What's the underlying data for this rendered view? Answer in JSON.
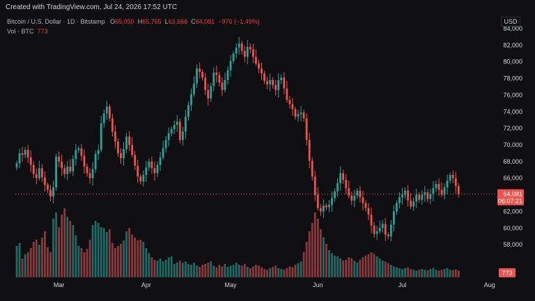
{
  "header": {
    "created_text": "Created with TradingView.com, Jul 24, 2026 17:52 UTC"
  },
  "legend": {
    "symbol": "Bitcoin / U.S. Dollar · 1D · Bitstamp",
    "o_label": "O",
    "o_value": "65,050",
    "h_label": "H",
    "h_value": "65,765",
    "l_label": "L",
    "l_value": "63,666",
    "c_label": "C",
    "c_value": "64,081",
    "change": "−970 (−1.49%)",
    "vol_label": "Vol · BTC",
    "vol_value": "773"
  },
  "price_axis": {
    "currency": "USD",
    "last_price": "64,081",
    "countdown": "06:07:21",
    "volume_badge": "773"
  },
  "colors": {
    "up": "#26a69a",
    "down": "#ef5350",
    "up_vol": "#1f6b66",
    "down_vol": "#8a3a3c",
    "bg": "#0f0f12"
  },
  "chart_data": {
    "type": "candlestick",
    "ylim": [
      56000,
      84000
    ],
    "yticks": [
      58000,
      60000,
      62000,
      64000,
      66000,
      68000,
      70000,
      72000,
      74000,
      76000,
      78000,
      80000,
      82000,
      84000
    ],
    "ytick_labels": [
      "58,000",
      "60,000",
      "62,000",
      "",
      "66,000",
      "68,000",
      "70,000",
      "72,000",
      "74,000",
      "76,000",
      "78,000",
      "80,000",
      "82,000",
      "84,000"
    ],
    "xticks": [
      {
        "label": "Mar",
        "index": 15
      },
      {
        "label": "Apr",
        "index": 46
      },
      {
        "label": "May",
        "index": 76
      },
      {
        "label": "Jun",
        "index": 107
      },
      {
        "label": "Jul",
        "index": 137
      },
      {
        "label": "Aug",
        "index": 168
      }
    ],
    "last_price": 64081,
    "grid": false,
    "closes": [
      67800,
      69000,
      68800,
      69400,
      68500,
      67600,
      66500,
      66000,
      67200,
      66100,
      65200,
      64600,
      63800,
      64900,
      68600,
      68000,
      67200,
      66500,
      67400,
      66800,
      68300,
      69400,
      69600,
      68700,
      67400,
      66600,
      66000,
      67100,
      68900,
      69400,
      72600,
      73800,
      74600,
      73200,
      71600,
      70400,
      69000,
      68400,
      69500,
      71000,
      70000,
      68800,
      67500,
      66200,
      65600,
      66400,
      67300,
      68000,
      67200,
      66600,
      67600,
      68500,
      69600,
      70600,
      71400,
      71900,
      72400,
      72800,
      70600,
      71600,
      73400,
      74800,
      76100,
      77400,
      79200,
      78800,
      78100,
      76600,
      75600,
      77100,
      78700,
      78400,
      77500,
      76600,
      77800,
      79000,
      80100,
      81000,
      81700,
      82200,
      81300,
      80600,
      81800,
      81500,
      80600,
      79800,
      79200,
      78600,
      77700,
      77300,
      77800,
      77200,
      76600,
      77800,
      78100,
      76800,
      75400,
      74900,
      74300,
      73400,
      73700,
      73900,
      73200,
      70600,
      68100,
      66200,
      64000,
      62400,
      62000,
      62700,
      62500,
      62800,
      63600,
      64400,
      65400,
      66600,
      65800,
      64800,
      63900,
      63300,
      63900,
      64500,
      63700,
      63000,
      62400,
      61600,
      60300,
      59300,
      59600,
      60000,
      60500,
      59200,
      59000,
      60400,
      62000,
      63000,
      63700,
      64000,
      64500,
      63300,
      62600,
      63200,
      64000,
      63400,
      64000,
      64300,
      63500,
      64100,
      64800,
      65300,
      64600,
      64000,
      64900,
      65700,
      66400,
      66000,
      65050,
      64081
    ],
    "volumes": [
      75,
      82,
      45,
      55,
      60,
      70,
      85,
      90,
      78,
      95,
      110,
      72,
      60,
      140,
      155,
      120,
      150,
      165,
      145,
      135,
      125,
      100,
      75,
      70,
      60,
      68,
      90,
      125,
      135,
      130,
      120,
      118,
      108,
      115,
      82,
      70,
      75,
      80,
      88,
      110,
      118,
      102,
      95,
      88,
      90,
      85,
      70,
      58,
      48,
      42,
      40,
      45,
      38,
      42,
      48,
      50,
      32,
      36,
      40,
      35,
      38,
      32,
      30,
      35,
      28,
      25,
      30,
      32,
      35,
      38,
      28,
      24,
      30,
      26,
      32,
      25,
      28,
      30,
      35,
      30,
      28,
      32,
      25,
      22,
      26,
      30,
      28,
      24,
      20,
      18,
      22,
      25,
      28,
      22,
      20,
      18,
      22,
      26,
      24,
      30,
      34,
      38,
      60,
      85,
      110,
      130,
      155,
      140,
      115,
      96,
      80,
      65,
      58,
      52,
      50,
      45,
      40,
      42,
      48,
      46,
      40,
      36,
      42,
      48,
      52,
      55,
      60,
      56,
      50,
      45,
      40,
      38,
      34,
      30,
      26,
      24,
      22,
      20,
      22,
      24,
      20,
      18,
      16,
      18,
      20,
      18,
      17,
      20,
      22,
      18,
      16,
      18,
      20,
      22,
      18,
      17,
      19,
      16
    ]
  }
}
